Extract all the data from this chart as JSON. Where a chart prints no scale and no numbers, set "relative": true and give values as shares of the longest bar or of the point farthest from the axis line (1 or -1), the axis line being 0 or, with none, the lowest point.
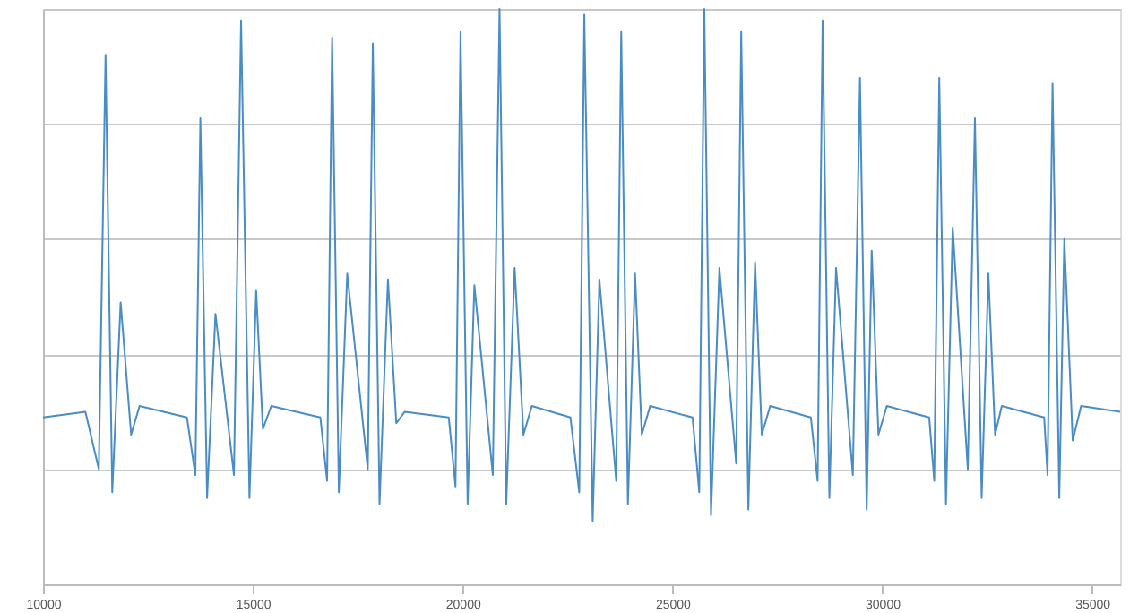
{
  "chart_data": {
    "type": "line",
    "relative": true,
    "grid": "y",
    "marker": "none",
    "line_style": "solid",
    "tick_labels": "x",
    "xlim": [
      10000,
      35670
    ],
    "xticks": [
      10000,
      15000,
      20000,
      25000,
      30000,
      35000
    ],
    "x": [
      10000,
      11010,
      11330,
      11490,
      11650,
      11850,
      12100,
      12300,
      13430,
      13630,
      13750,
      13910,
      14110,
      14550,
      14720,
      14920,
      15080,
      15240,
      15440,
      16610,
      16770,
      16890,
      17050,
      17250,
      17740,
      17860,
      18020,
      18220,
      18420,
      18620,
      19670,
      19830,
      19950,
      20120,
      20280,
      20720,
      20880,
      21040,
      21240,
      21450,
      21650,
      22570,
      22780,
      22900,
      23100,
      23260,
      23660,
      23780,
      23940,
      24110,
      24270,
      24470,
      25480,
      25640,
      25760,
      25920,
      26120,
      26520,
      26640,
      26810,
      26970,
      27130,
      27330,
      28300,
      28460,
      28580,
      28740,
      28900,
      29300,
      29470,
      29630,
      29750,
      29910,
      30110,
      31120,
      31240,
      31360,
      31520,
      31680,
      32040,
      32210,
      32370,
      32530,
      32690,
      32850,
      33860,
      33940,
      34060,
      34220,
      34340,
      34540,
      34740,
      35670
    ],
    "series": [
      {
        "color": "#4a8cc4",
        "values": [
          0.29,
          0.3,
          0.2,
          0.92,
          0.16,
          0.49,
          0.26,
          0.31,
          0.29,
          0.19,
          0.81,
          0.15,
          0.47,
          0.19,
          0.98,
          0.15,
          0.51,
          0.27,
          0.31,
          0.29,
          0.18,
          0.95,
          0.16,
          0.54,
          0.2,
          0.94,
          0.14,
          0.53,
          0.28,
          0.3,
          0.29,
          0.17,
          0.96,
          0.14,
          0.52,
          0.19,
          1.0,
          0.14,
          0.55,
          0.26,
          0.31,
          0.29,
          0.16,
          0.99,
          0.11,
          0.53,
          0.18,
          0.96,
          0.14,
          0.54,
          0.26,
          0.31,
          0.29,
          0.16,
          1.0,
          0.12,
          0.55,
          0.21,
          0.96,
          0.13,
          0.56,
          0.26,
          0.31,
          0.29,
          0.18,
          0.98,
          0.15,
          0.55,
          0.19,
          0.88,
          0.13,
          0.58,
          0.26,
          0.31,
          0.29,
          0.18,
          0.88,
          0.14,
          0.62,
          0.2,
          0.81,
          0.15,
          0.54,
          0.26,
          0.31,
          0.29,
          0.19,
          0.87,
          0.15,
          0.6,
          0.25,
          0.31,
          0.3
        ]
      }
    ]
  }
}
